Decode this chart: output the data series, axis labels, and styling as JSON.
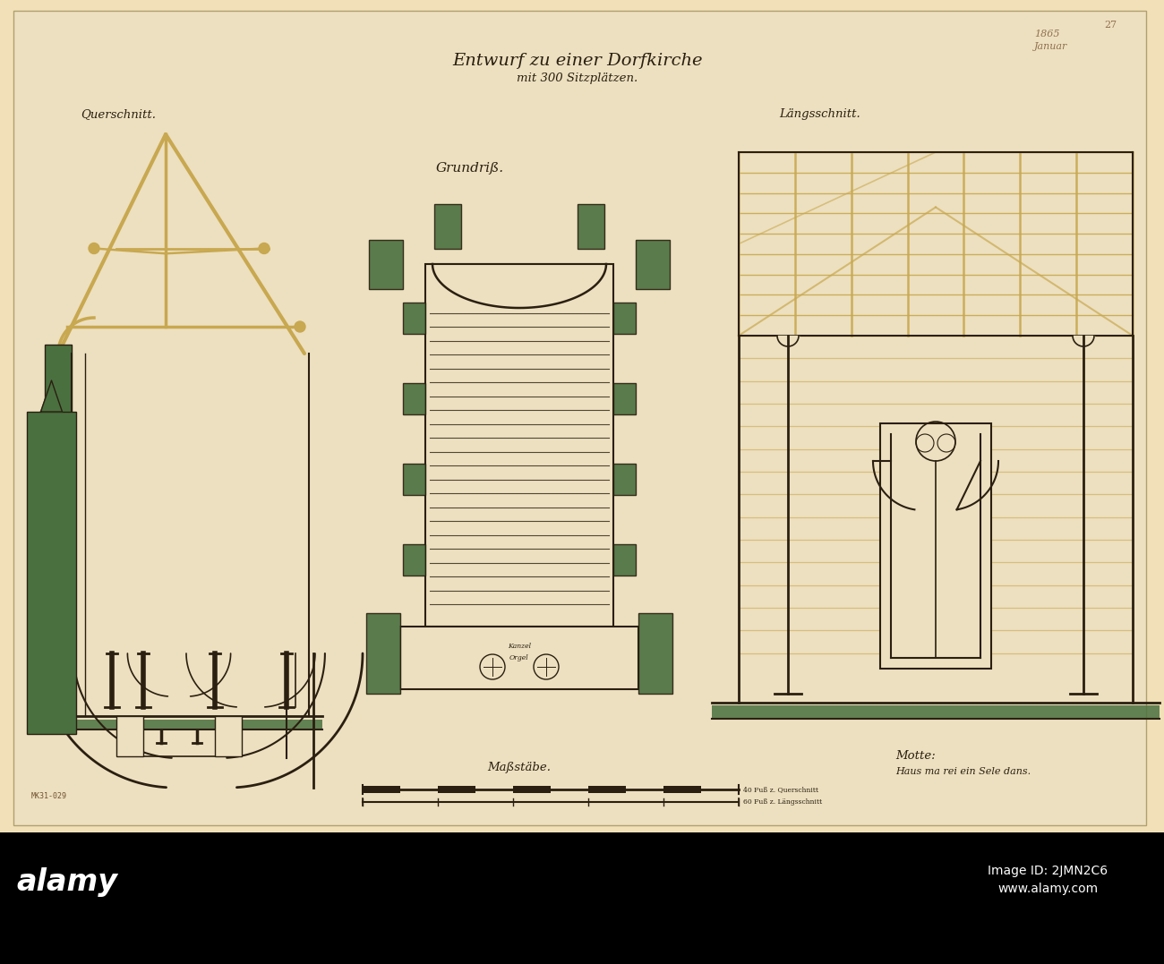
{
  "bg_color": "#f2e0b8",
  "paper_color": "#ede0c0",
  "ink_color": "#2a1f10",
  "green_color": "#4a7040",
  "tan_beam": "#c8a850",
  "tan_light": "#d4b870",
  "title_line1": "Entwurf zu einer Dorfkirche",
  "title_line2": "mit 300 Sitzplätzen.",
  "label_querschnitt": "Querschnitt.",
  "label_laengsschnitt": "Längsschnitt.",
  "label_grundriss": "Grundriß.",
  "label_masstabe": "Maßstäbe.",
  "label_motte": "Motte:",
  "label_motte2": "Haus ma rei ein Sele dans.",
  "alamy_bar_color": "#000000",
  "alamy_text": "alamy",
  "image_id_text": "Image ID: 2JMN2C6",
  "image_url_text": "www.alamy.com",
  "year_text": "1865",
  "month_text": "Januar",
  "page_number": "27"
}
